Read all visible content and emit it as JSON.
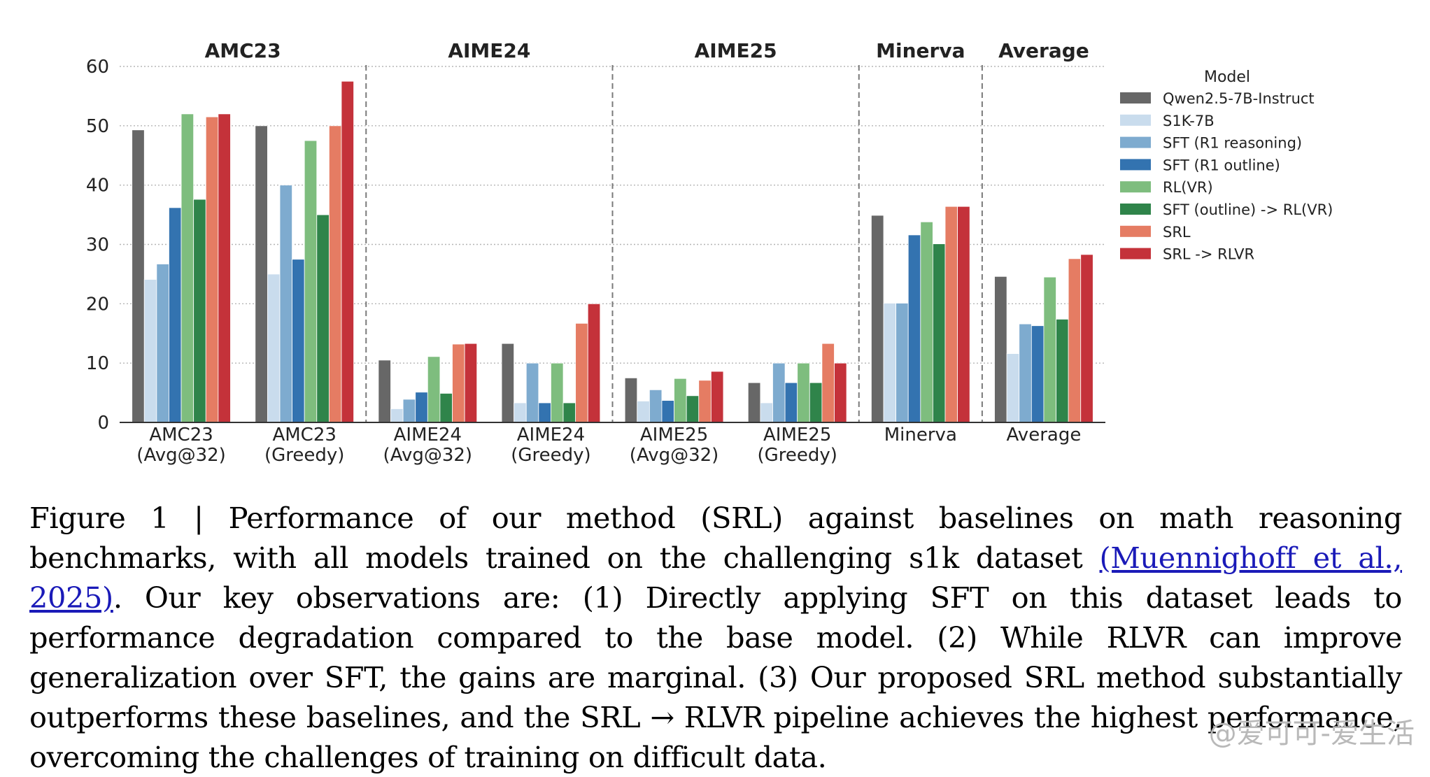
{
  "chart_data": {
    "type": "bar",
    "groups": [
      "AMC23",
      "AIME24",
      "AIME25",
      "Minerva",
      "Average"
    ],
    "categories": [
      {
        "line1": "AMC23",
        "line2": "(Avg@32)",
        "group": "AMC23"
      },
      {
        "line1": "AMC23",
        "line2": "(Greedy)",
        "group": "AMC23"
      },
      {
        "line1": "AIME24",
        "line2": "(Avg@32)",
        "group": "AIME24"
      },
      {
        "line1": "AIME24",
        "line2": "(Greedy)",
        "group": "AIME24"
      },
      {
        "line1": "AIME25",
        "line2": "(Avg@32)",
        "group": "AIME25"
      },
      {
        "line1": "AIME25",
        "line2": "(Greedy)",
        "group": "AIME25"
      },
      {
        "line1": "Minerva",
        "line2": "",
        "group": "Minerva"
      },
      {
        "line1": "Average",
        "line2": "",
        "group": "Average"
      }
    ],
    "legend_title": "Model",
    "legend_position": "top-right outside",
    "series": [
      {
        "name": "Qwen2.5-7B-Instruct",
        "color": "#676767",
        "values": [
          49.3,
          50.0,
          10.5,
          13.3,
          7.5,
          6.7,
          34.9,
          24.6
        ]
      },
      {
        "name": "S1K-7B",
        "color": "#c9dced",
        "values": [
          24.1,
          25.0,
          2.3,
          3.3,
          3.6,
          3.3,
          20.1,
          11.6
        ]
      },
      {
        "name": "SFT (R1 reasoning)",
        "color": "#7eabcf",
        "values": [
          26.7,
          40.0,
          3.9,
          10.0,
          5.5,
          10.0,
          20.1,
          16.6
        ]
      },
      {
        "name": "SFT (R1 outline)",
        "color": "#3373b0",
        "values": [
          36.2,
          27.5,
          5.1,
          3.3,
          3.7,
          6.7,
          31.6,
          16.3
        ]
      },
      {
        "name": "RL(VR)",
        "color": "#7ebd7e",
        "values": [
          52.0,
          47.5,
          11.1,
          10.0,
          7.4,
          10.0,
          33.8,
          24.5
        ]
      },
      {
        "name": "SFT (outline) -> RL(VR)",
        "color": "#2f844a",
        "values": [
          37.6,
          35.0,
          4.9,
          3.3,
          4.5,
          6.7,
          30.1,
          17.4
        ]
      },
      {
        "name": "SRL",
        "color": "#e57c63",
        "values": [
          51.5,
          50.0,
          13.2,
          16.7,
          7.1,
          13.3,
          36.4,
          27.6
        ]
      },
      {
        "name": "SRL -> RLVR",
        "color": "#c4323a",
        "values": [
          52.0,
          57.5,
          13.3,
          20.0,
          8.6,
          10.0,
          36.4,
          28.3
        ]
      }
    ],
    "ylim": [
      0,
      60
    ],
    "yticks": [
      0,
      10,
      20,
      30,
      40,
      50,
      60
    ],
    "grid": true
  },
  "caption": {
    "figure_label": "Figure 1",
    "separator": "|",
    "text_before_citation": "Performance of our method (SRL) against baselines on math reasoning benchmarks, with all models trained on the challenging s1k dataset",
    "citation": "(Muennighoff et al., 2025)",
    "text_after_citation": ". Our key observations are: (1) Directly applying SFT on this dataset leads to performance degradation compared to the base model. (2) While RLVR can improve generalization over SFT, the gains are marginal. (3) Our proposed SRL method substantially outperforms these baselines, and the SRL → RLVR pipeline achieves the highest performance, overcoming the challenges of training on difficult data."
  },
  "watermark": "@爱可可-爱生活"
}
